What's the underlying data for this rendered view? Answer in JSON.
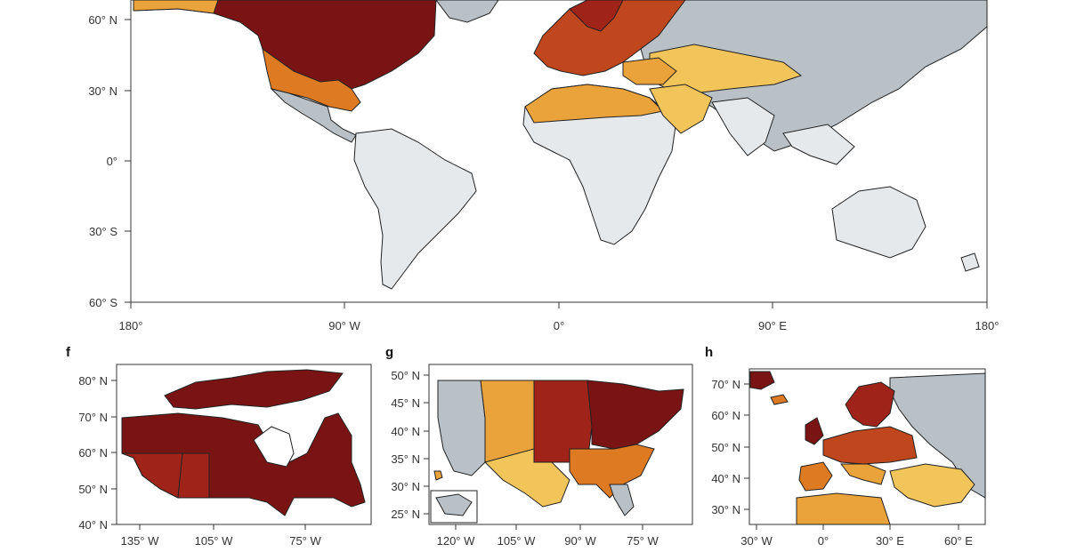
{
  "panels": {
    "world": {
      "lat_ticks": [
        "60° N",
        "30° N",
        "0°",
        "30° S",
        "60° S"
      ],
      "lon_ticks": [
        "180°",
        "90° W",
        "0°",
        "90° E",
        "180°"
      ]
    },
    "f": {
      "letter": "f",
      "lat_ticks": [
        "80° N",
        "70° N",
        "60° N",
        "50° N",
        "40° N"
      ],
      "lon_ticks": [
        "135° W",
        "105° W",
        "75° W"
      ]
    },
    "g": {
      "letter": "g",
      "lat_ticks": [
        "50° N",
        "45° N",
        "40° N",
        "35° N",
        "30° N",
        "25° N"
      ],
      "lon_ticks": [
        "120° W",
        "105° W",
        "90° W",
        "75° W"
      ]
    },
    "h": {
      "letter": "h",
      "lat_ticks": [
        "70° N",
        "60° N",
        "50° N",
        "40° N",
        "30° N"
      ],
      "lon_ticks": [
        "30° W",
        "0°",
        "30° E",
        "60° E"
      ]
    }
  },
  "colors": {
    "dark_red": "#7a1414",
    "red": "#a0231a",
    "red_orange": "#c0461e",
    "orange": "#dd7a22",
    "light_orange": "#eaa23a",
    "yellow": "#f2c55a",
    "gray": "#b9c1c7",
    "light_gray": "#e6e9ec"
  }
}
